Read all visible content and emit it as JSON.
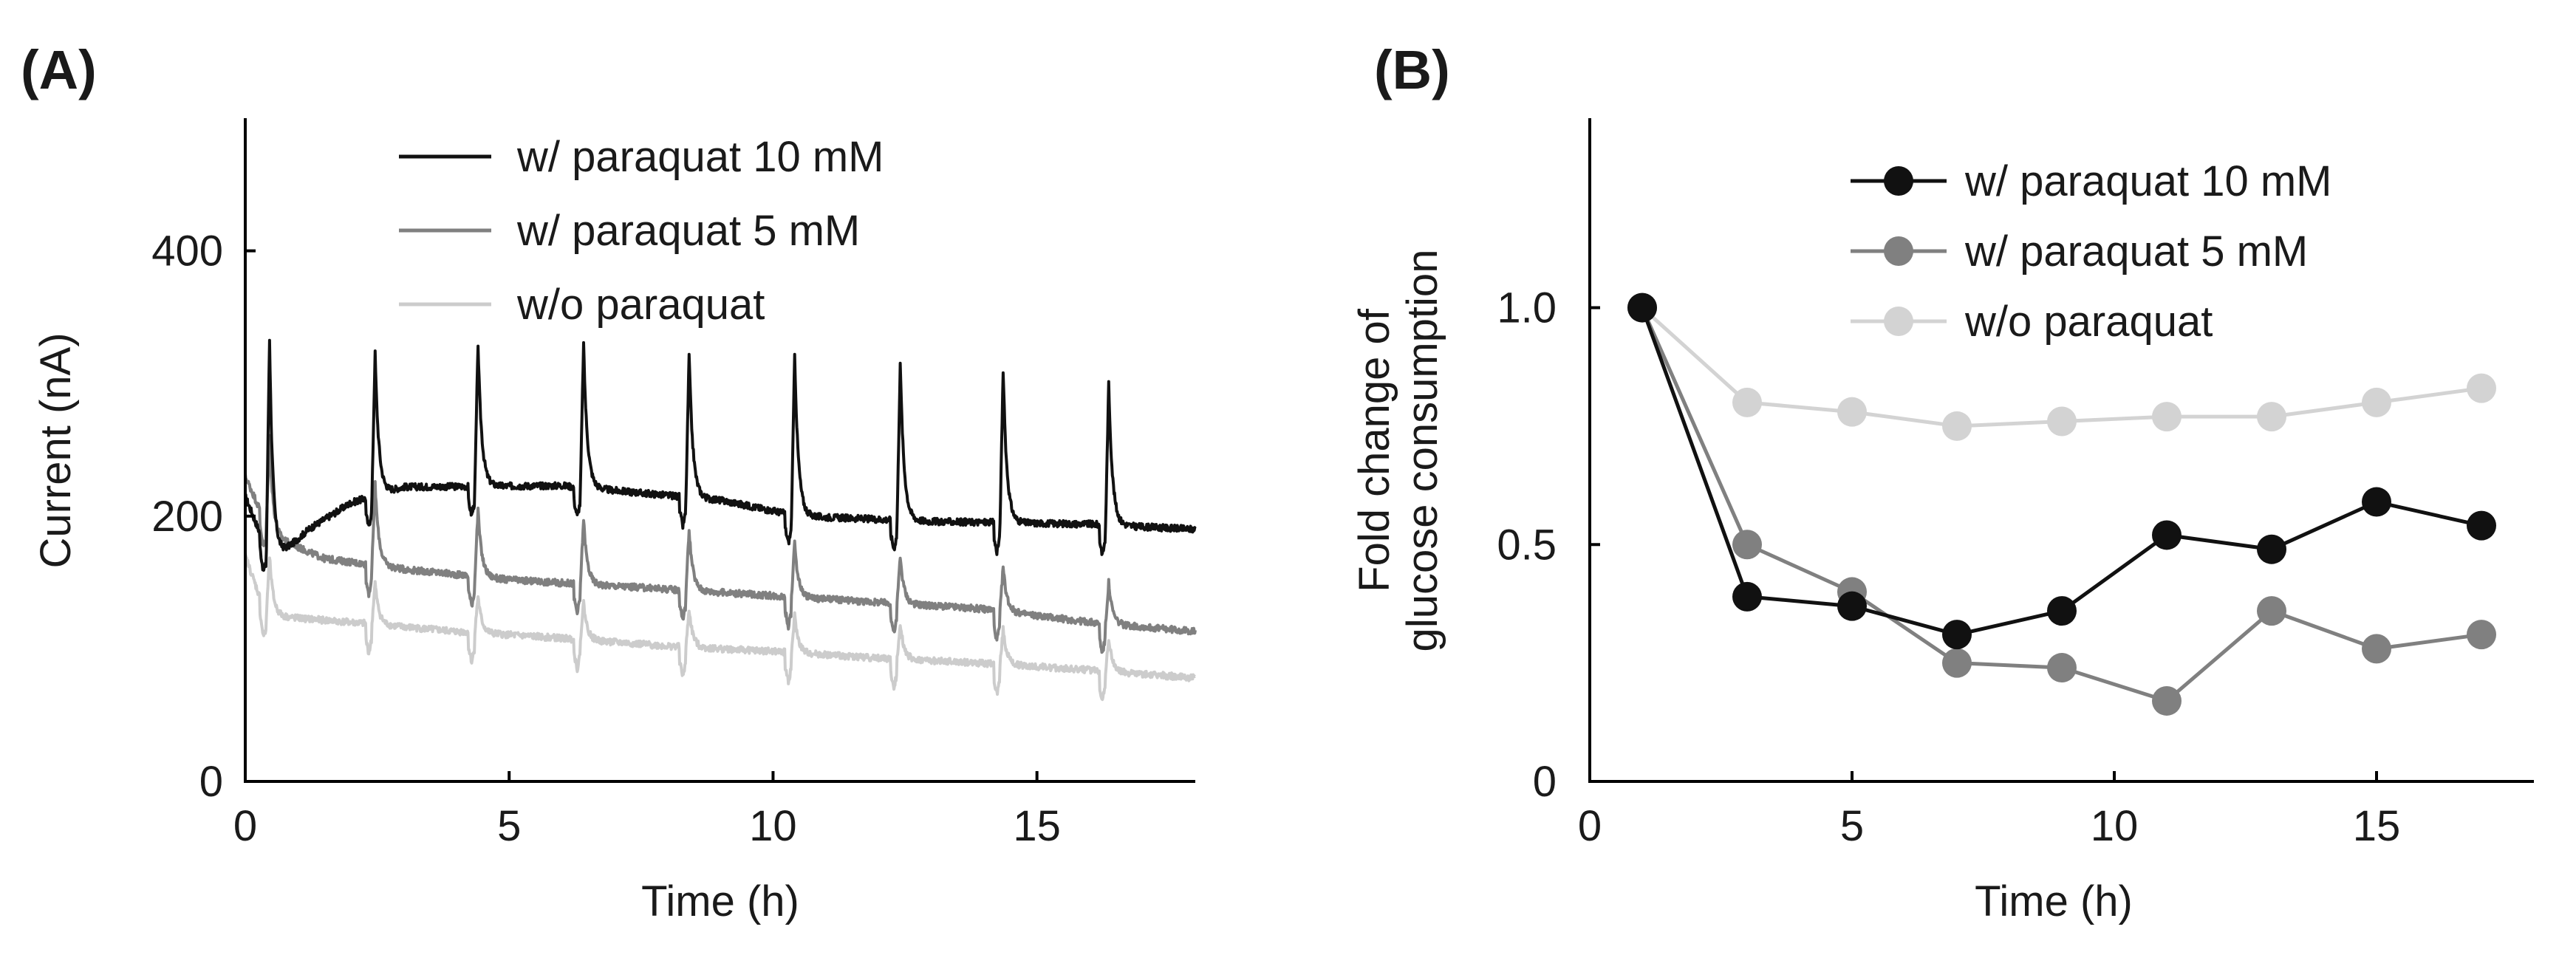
{
  "chart_data": [
    {
      "panel": "(A)",
      "type": "line",
      "xlabel": "Time (h)",
      "ylabel": "Current (nA)",
      "xlim": [
        0,
        18
      ],
      "ylim": [
        0,
        500
      ],
      "xticks": [
        0,
        5,
        10,
        15
      ],
      "yticks": [
        0,
        200,
        400
      ],
      "legend_position": "top-center",
      "spike_times": [
        0.4,
        2.4,
        4.35,
        6.35,
        8.35,
        10.35,
        12.35,
        14.3,
        16.3
      ],
      "series": [
        {
          "name": "w/ paraquat 10 mM",
          "color": "#111111",
          "baseline": [
            [
              0,
              215
            ],
            [
              0.5,
              165
            ],
            [
              1.2,
              190
            ],
            [
              2.0,
              210
            ],
            [
              3.0,
              222
            ],
            [
              6.0,
              223
            ],
            [
              9.0,
              212
            ],
            [
              10.5,
              200
            ],
            [
              13.0,
              196
            ],
            [
              16.0,
              194
            ],
            [
              18,
              190
            ]
          ],
          "spike_peaks": [
            340,
            322,
            330,
            330,
            322,
            322,
            316,
            310,
            300
          ]
        },
        {
          "name": "w/ paraquat 5 mM",
          "color": "#808080",
          "baseline": [
            [
              0,
              230
            ],
            [
              0.5,
              185
            ],
            [
              1.5,
              168
            ],
            [
              3.0,
              160
            ],
            [
              5.0,
              152
            ],
            [
              8.0,
              145
            ],
            [
              10.0,
              140
            ],
            [
              12.0,
              135
            ],
            [
              14.0,
              130
            ],
            [
              16.0,
              120
            ],
            [
              18,
              113
            ]
          ],
          "spike_peaks": [
            265,
            225,
            205,
            198,
            190,
            180,
            170,
            162,
            150
          ]
        },
        {
          "name": "w/o paraquat",
          "color": "#cccccc",
          "baseline": [
            [
              0,
              170
            ],
            [
              0.4,
              125
            ],
            [
              2.0,
              120
            ],
            [
              4.0,
              113
            ],
            [
              6.0,
              108
            ],
            [
              8.0,
              102
            ],
            [
              10.0,
              98
            ],
            [
              12.0,
              93
            ],
            [
              14.0,
              89
            ],
            [
              16.0,
              84
            ],
            [
              18,
              78
            ]
          ],
          "spike_peaks": [
            170,
            150,
            140,
            135,
            130,
            125,
            120,
            115,
            108
          ]
        }
      ]
    },
    {
      "panel": "(B)",
      "type": "line",
      "xlabel": "Time (h)",
      "ylabel_line1": "Fold change of",
      "ylabel_line2": "glucose consumption",
      "xlim": [
        0,
        18
      ],
      "ylim": [
        0,
        1.4
      ],
      "xticks": [
        0,
        5,
        10,
        15
      ],
      "yticks": [
        0,
        0.5,
        1.0
      ],
      "ytick_labels": [
        "0",
        "0.5",
        "1.0"
      ],
      "legend_position": "top-right",
      "x": [
        1,
        3,
        5,
        7,
        9,
        11,
        13,
        15,
        17
      ],
      "series": [
        {
          "name": "w/ paraquat 10 mM",
          "color": "#111111",
          "values": [
            1.0,
            0.39,
            0.37,
            0.31,
            0.36,
            0.52,
            0.49,
            0.59,
            0.54
          ]
        },
        {
          "name": "w/ paraquat 5 mM",
          "color": "#808080",
          "values": [
            1.0,
            0.5,
            0.4,
            0.25,
            0.24,
            0.17,
            0.36,
            0.28,
            0.31
          ]
        },
        {
          "name": "w/o paraquat",
          "color": "#d3d3d3",
          "values": [
            1.0,
            0.8,
            0.78,
            0.75,
            0.76,
            0.77,
            0.77,
            0.8,
            0.83
          ]
        }
      ]
    }
  ]
}
